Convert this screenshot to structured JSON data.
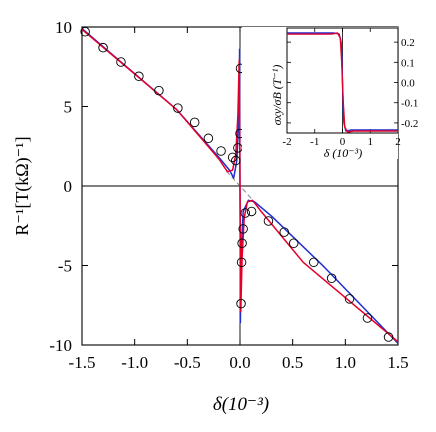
{
  "colors": {
    "fit_red": "#e4002b",
    "fit_blue": "#1f2fcf",
    "axis": "#000000",
    "guide": "#888888"
  },
  "chart_data": [
    {
      "id": "main",
      "type": "scatter",
      "xlabel": "δ(10⁻³)",
      "ylabel": "R⁻¹[T(kΩ)⁻¹]",
      "xlim": [
        -1.5,
        1.5
      ],
      "ylim": [
        -10,
        10
      ],
      "xticks": [
        -1.5,
        -1.0,
        -0.5,
        0.0,
        0.5,
        1.0,
        1.5
      ],
      "xtick_labels": [
        "-1.5",
        "-1.0",
        "-0.5",
        "0.0",
        "0.5",
        "1.0",
        "1.5"
      ],
      "yticks": [
        -10,
        -5,
        0,
        5,
        10
      ],
      "ytick_labels": [
        "-10",
        "-5",
        "0",
        "5",
        "10"
      ],
      "grid": false,
      "markers": {
        "x": [
          -1.47,
          -1.3,
          -1.13,
          -0.96,
          -0.77,
          -0.59,
          -0.43,
          -0.3,
          -0.18,
          -0.07,
          -0.04,
          -0.02,
          0.0,
          0.005,
          0.01,
          0.015,
          0.02,
          0.03,
          0.05,
          0.11,
          0.27,
          0.42,
          0.51,
          0.7,
          0.87,
          1.04,
          1.21,
          1.41
        ],
        "y": [
          9.7,
          8.7,
          7.8,
          6.9,
          6.0,
          4.9,
          4.0,
          3.0,
          2.2,
          1.8,
          1.6,
          2.4,
          3.3,
          7.4,
          -7.4,
          -4.8,
          -3.6,
          -2.7,
          -1.7,
          -1.6,
          -2.2,
          -2.9,
          -3.6,
          -4.8,
          -5.8,
          -7.1,
          -8.3,
          -9.5
        ]
      },
      "series": [
        {
          "color": "blue",
          "x": [
            -1.5,
            -0.6,
            -0.2,
            -0.1,
            -0.06,
            -0.03,
            -0.01,
            -0.004,
            0.004,
            0.01,
            0.03,
            0.08,
            0.14,
            0.3,
            0.8,
            1.5
          ],
          "y": [
            9.9,
            4.8,
            1.8,
            1.0,
            0.5,
            1.6,
            4.2,
            8.6,
            -8.6,
            -4.2,
            -1.6,
            -0.9,
            -1.0,
            -1.9,
            -5.1,
            -9.9
          ]
        },
        {
          "color": "red",
          "x": [
            -1.5,
            -0.6,
            -0.2,
            -0.12,
            -0.07,
            -0.04,
            -0.02,
            -0.008,
            0.008,
            0.02,
            0.04,
            0.07,
            0.12,
            0.2,
            0.6,
            1.5
          ],
          "y": [
            9.85,
            4.8,
            1.7,
            0.9,
            1.0,
            2.0,
            4.5,
            7.9,
            -7.9,
            -4.5,
            -2.0,
            -1.0,
            -0.9,
            -1.6,
            -4.8,
            -9.8
          ]
        },
        {
          "color": "guide_dashed",
          "x": [
            -0.13,
            0.13
          ],
          "y": [
            0.95,
            -0.95
          ]
        }
      ]
    },
    {
      "id": "inset",
      "type": "line",
      "xlabel": "δ (10⁻³)",
      "ylabel": "σxy/σB (T⁻¹)",
      "xlim": [
        -2,
        2
      ],
      "ylim": [
        -0.25,
        0.27
      ],
      "xticks": [
        -2,
        -1,
        0,
        1,
        2
      ],
      "xtick_labels": [
        "-2",
        "-1",
        "0",
        "1",
        "2"
      ],
      "yticks": [
        -0.2,
        -0.1,
        0.0,
        0.1,
        0.2
      ],
      "ytick_labels": [
        "-0.2",
        "-0.1",
        "0.0",
        "0.1",
        "0.2"
      ],
      "series": [
        {
          "color": "blue",
          "x": [
            -2,
            -0.3,
            -0.12,
            -0.05,
            -0.02,
            0.0,
            0.02,
            0.05,
            0.12,
            0.3,
            2
          ],
          "y": [
            0.245,
            0.245,
            0.24,
            0.2,
            0.12,
            0.0,
            -0.12,
            -0.2,
            -0.24,
            -0.235,
            -0.235
          ]
        },
        {
          "color": "red",
          "x": [
            -2,
            -0.4,
            -0.18,
            -0.08,
            -0.03,
            0.0,
            0.03,
            0.08,
            0.18,
            0.4,
            2
          ],
          "y": [
            0.24,
            0.24,
            0.245,
            0.22,
            0.1,
            0.0,
            -0.1,
            -0.22,
            -0.245,
            -0.24,
            -0.24
          ]
        }
      ]
    }
  ]
}
